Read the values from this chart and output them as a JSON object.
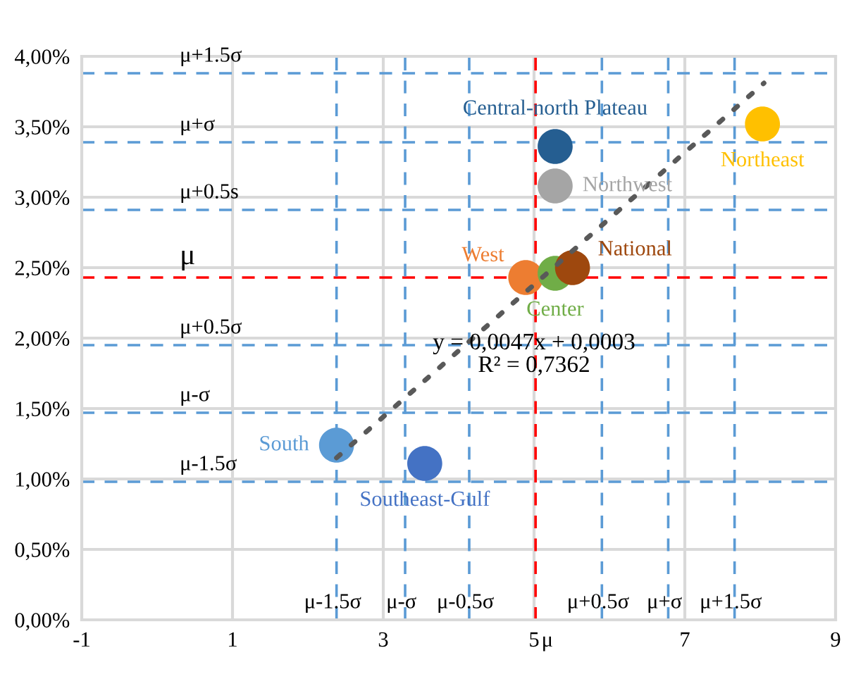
{
  "chart_data": {
    "type": "scatter",
    "series": [
      {
        "name": "South",
        "color": "#5b9bd5",
        "x": [
          2.38
        ],
        "values": [
          1.24
        ]
      },
      {
        "name": "Southeast-Gulf",
        "color": "#4472c4",
        "x": [
          3.55
        ],
        "values": [
          1.11
        ]
      },
      {
        "name": "West",
        "color": "#ed7d31",
        "x": [
          4.89
        ],
        "values": [
          2.43
        ]
      },
      {
        "name": "Center",
        "color": "#70ad47",
        "x": [
          5.28
        ],
        "values": [
          2.46
        ]
      },
      {
        "name": "National",
        "color": "#9e480e",
        "x": [
          5.51
        ],
        "values": [
          2.5
        ]
      },
      {
        "name": "Central-north Plateau",
        "color": "#255e91",
        "x": [
          5.28
        ],
        "values": [
          3.36
        ]
      },
      {
        "name": "Northwest",
        "color": "#a5a5a5",
        "x": [
          5.28
        ],
        "values": [
          3.08
        ]
      },
      {
        "name": "Northeast",
        "color": "#ffc000",
        "x": [
          8.03
        ],
        "values": [
          3.52
        ]
      },
      {
        "type": "line",
        "color": "#595959",
        "line_style": "dotted",
        "marker": "none",
        "x": [
          2.38,
          8.05
        ],
        "values": [
          1.15,
          3.81
        ]
      }
    ],
    "xlim": [
      -1,
      9
    ],
    "xticks": [
      -1,
      1,
      3,
      5,
      7,
      9
    ],
    "ylim": [
      0,
      4
    ],
    "yticks": [
      {
        "value": 0,
        "label": "0,00%"
      },
      {
        "value": 0.5,
        "label": "0,50%"
      },
      {
        "value": 1,
        "label": "1,00%"
      },
      {
        "value": 1.5,
        "label": "1,50%"
      },
      {
        "value": 2,
        "label": "2,00%"
      },
      {
        "value": 2.5,
        "label": "2,50%"
      },
      {
        "value": 3,
        "label": "3,00%"
      },
      {
        "value": 3.5,
        "label": "3,50%"
      },
      {
        "value": 4,
        "label": "4,00%"
      }
    ],
    "grid": true,
    "legend": false,
    "marker": "circle",
    "ref_lines": [
      {
        "axis": "y",
        "value": 3.88,
        "label": "μ+1.5σ",
        "color": "#5b9bd5",
        "line_style": "dashed"
      },
      {
        "axis": "y",
        "value": 3.39,
        "label": "μ+σ",
        "color": "#5b9bd5",
        "line_style": "dashed"
      },
      {
        "axis": "y",
        "value": 2.91,
        "label": "μ+0.5s",
        "color": "#5b9bd5",
        "line_style": "dashed"
      },
      {
        "axis": "y",
        "value": 2.43,
        "label": "μ",
        "color": "#ff0000",
        "line_style": "dashed"
      },
      {
        "axis": "y",
        "value": 1.95,
        "label": "μ+0.5σ",
        "color": "#5b9bd5",
        "line_style": "dashed"
      },
      {
        "axis": "y",
        "value": 1.47,
        "label": "μ-σ",
        "color": "#5b9bd5",
        "line_style": "dashed"
      },
      {
        "axis": "y",
        "value": 0.98,
        "label": "μ-1.5σ",
        "color": "#5b9bd5",
        "line_style": "dashed"
      },
      {
        "axis": "x",
        "value": 2.38,
        "label": "μ-1.5σ",
        "color": "#5b9bd5",
        "line_style": "dashed"
      },
      {
        "axis": "x",
        "value": 3.29,
        "label": "μ-σ",
        "color": "#5b9bd5",
        "line_style": "dashed"
      },
      {
        "axis": "x",
        "value": 4.14,
        "label": "μ-0.5σ",
        "color": "#5b9bd5",
        "line_style": "dashed"
      },
      {
        "axis": "x",
        "value": 5.02,
        "label": "μ",
        "color": "#ff0000",
        "line_style": "dashed"
      },
      {
        "axis": "x",
        "value": 5.9,
        "label": "μ+0.5σ",
        "color": "#5b9bd5",
        "line_style": "dashed"
      },
      {
        "axis": "x",
        "value": 6.78,
        "label": "μ+σ",
        "color": "#5b9bd5",
        "line_style": "dashed"
      },
      {
        "axis": "x",
        "value": 7.66,
        "label": "μ+1.5σ",
        "color": "#5b9bd5",
        "line_style": "dashed"
      }
    ],
    "annotations": [
      "y = 0,0047x + 0,0003",
      "R² = 0,7362"
    ]
  }
}
